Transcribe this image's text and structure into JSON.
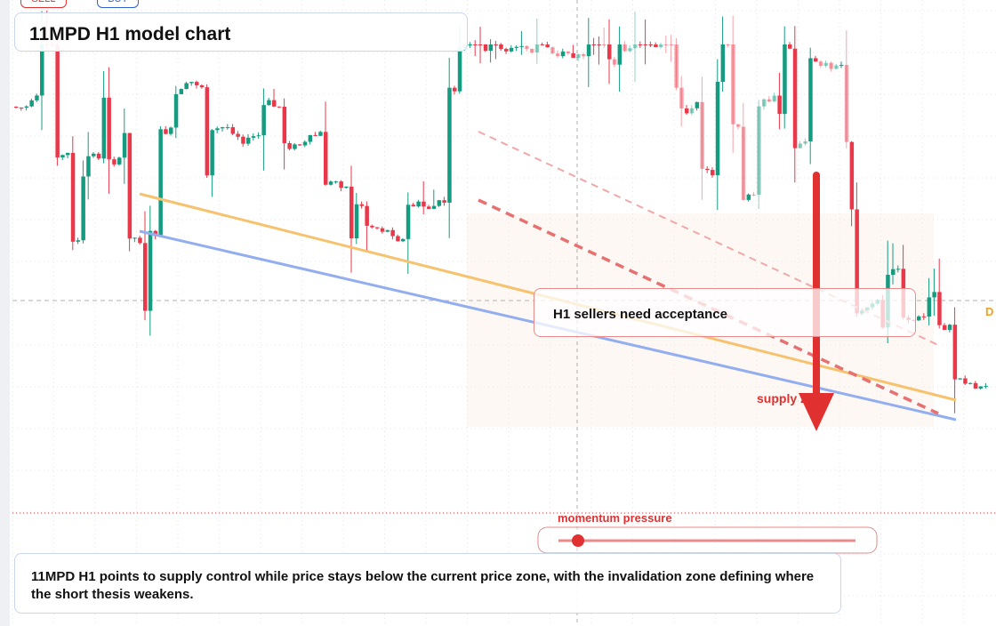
{
  "toolbar": {
    "sell": "SELL",
    "buy": "BUY"
  },
  "header": {
    "title": "11MPD H1 model chart"
  },
  "annotations": {
    "callout": "H1 sellers need acceptance",
    "zone": "supply zone",
    "momentum": "momentum pressure",
    "edge_label": "D"
  },
  "summary": {
    "text": "11MPD H1 points to supply control while price stays below the current price zone, with the invalidation zone defining where the short thesis weakens."
  }
}
